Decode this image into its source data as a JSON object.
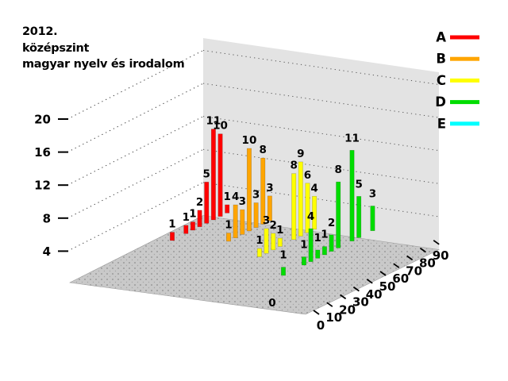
{
  "title": {
    "line1": "2012.",
    "line2": "középszint",
    "line3": "magyar nyelv és irodalom"
  },
  "legend": [
    {
      "label": "A",
      "color": "#ff0000"
    },
    {
      "label": "B",
      "color": "#ffa500"
    },
    {
      "label": "C",
      "color": "#ffff00"
    },
    {
      "label": "D",
      "color": "#00dd00"
    },
    {
      "label": "E",
      "color": "#00ffff"
    }
  ],
  "chart_data": {
    "type": "bar",
    "projection": "3d",
    "title": "2012. középszint magyar nyelv és irodalom",
    "grid": "dotted",
    "legend_position": "top-right",
    "x_axis": {
      "ticks": [
        0,
        10,
        20,
        30,
        40,
        50,
        60,
        70,
        80,
        90
      ]
    },
    "z_axis": {
      "ticks": [
        4,
        8,
        12,
        16,
        20
      ]
    },
    "series": [
      {
        "name": "A",
        "color": "#ff0000",
        "values": [
          1,
          null,
          1,
          1,
          2,
          5,
          11,
          10,
          1
        ]
      },
      {
        "name": "B",
        "color": "#ffa500",
        "values": [
          1,
          4,
          3,
          10,
          3,
          8,
          3
        ]
      },
      {
        "name": "C",
        "color": "#ffff00",
        "values": [
          1,
          3,
          2,
          1,
          null,
          8,
          9,
          6,
          4
        ]
      },
      {
        "name": "D",
        "color": "#00dd00",
        "values": [
          1,
          null,
          null,
          1,
          4,
          1,
          1,
          2,
          8,
          null,
          11,
          5,
          null,
          3
        ]
      },
      {
        "name": "E",
        "color": "#00ffff",
        "values": [
          0
        ]
      }
    ]
  }
}
